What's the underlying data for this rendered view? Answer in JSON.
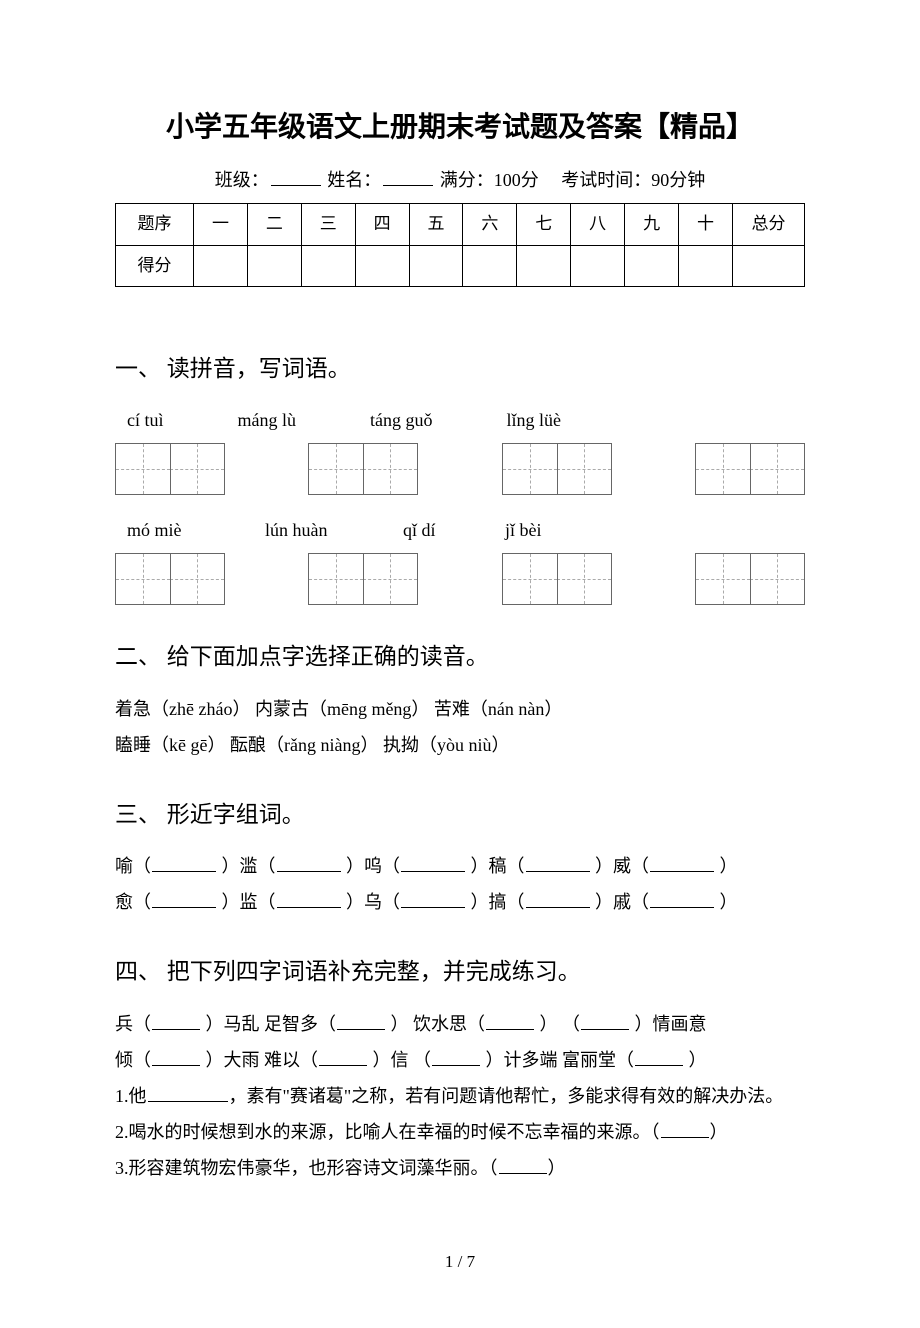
{
  "title": "小学五年级语文上册期末考试题及答案【精品】",
  "meta": {
    "class_label": "班级：",
    "name_label": "姓名：",
    "fullmarks_label": "满分：100分",
    "time_label": "考试时间：90分钟"
  },
  "score_table": {
    "header_row": [
      "题序",
      "一",
      "二",
      "三",
      "四",
      "五",
      "六",
      "七",
      "八",
      "九",
      "十",
      "总分"
    ],
    "score_label": "得分"
  },
  "sections": {
    "s1": {
      "heading": "一、 读拼音，写词语。",
      "pinyin_row1": [
        "cí tuì",
        "máng lù",
        "táng guǒ",
        "lǐng lüè"
      ],
      "pinyin_row2": [
        "mó miè",
        "lún huàn",
        "qǐ dí",
        "jǐ bèi"
      ]
    },
    "s2": {
      "heading": "二、 给下面加点字选择正确的读音。",
      "line1": "着急（zhē  zháo）  内蒙古（mēng  měng）  苦难（nán  nàn）",
      "line2": "瞌睡（kē  gē）  酝酿（rǎng  niàng）    执拗（yòu  niù）"
    },
    "s3": {
      "heading": "三、 形近字组词。",
      "row1": [
        "喻（",
        "）滥（",
        "）呜（",
        "）稿（",
        "）威（",
        "）"
      ],
      "row2": [
        "愈（",
        "）监（",
        "）乌（",
        "）搞（",
        "）戚（",
        "）"
      ]
    },
    "s4": {
      "heading": "四、 把下列四字词语补充完整，并完成练习。",
      "row1_parts": [
        "兵（",
        "）马乱    足智多（",
        "）   饮水思（",
        "）   （",
        "）情画意"
      ],
      "row2_parts": [
        "倾（",
        "）大雨    难以（",
        "）信   （",
        "）计多端    富丽堂（",
        "）"
      ],
      "q1_prefix": "1.他",
      "q1_suffix": "，素有\"赛诸葛\"之称，若有问题请他帮忙，多能求得有效的解决办法。",
      "q2": "2.喝水的时候想到水的来源，比喻人在幸福的时候不忘幸福的来源。（",
      "q2_end": "）",
      "q3": "3.形容建筑物宏伟豪华，也形容诗文词藻华丽。（",
      "q3_end": "）"
    }
  },
  "page_num": "1 / 7"
}
